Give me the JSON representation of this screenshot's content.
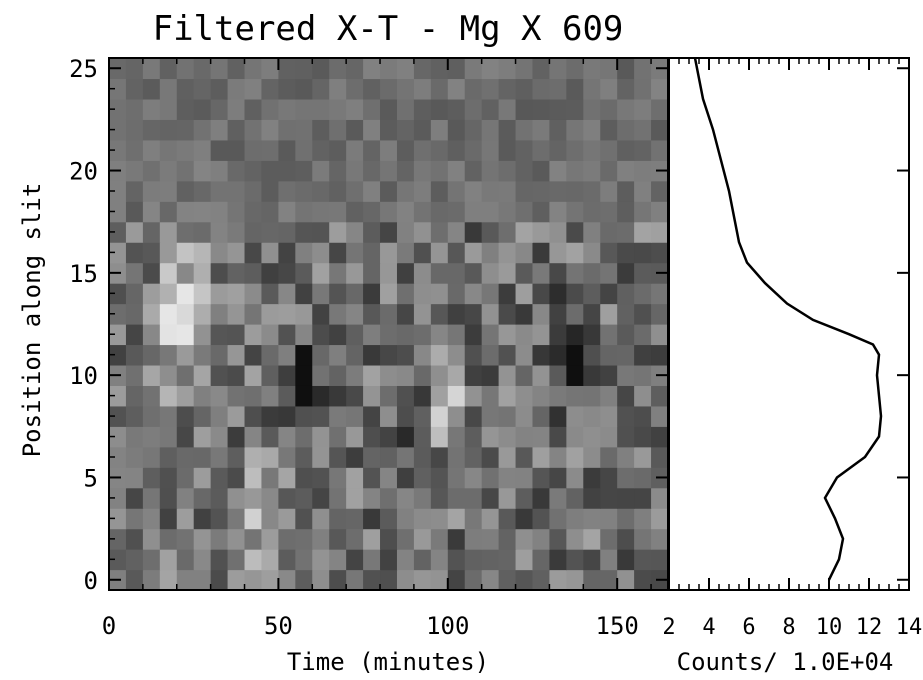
{
  "chart_data": [
    {
      "type": "heatmap",
      "title": "Filtered X-T - Mg X 609",
      "xlabel": "Time (minutes)",
      "ylabel": "Position along slit",
      "xlim": [
        0,
        165
      ],
      "ylim": [
        -0.5,
        25.5
      ],
      "xticks": [
        0,
        50,
        100,
        150
      ],
      "yticks": [
        0,
        5,
        10,
        15,
        20,
        25
      ],
      "colormap": "grayscale",
      "n_time_bins": 33,
      "n_position_bins": 26,
      "value_range": [
        -1,
        1
      ],
      "features": [
        {
          "description": "bright blob",
          "time": [
            15,
            30
          ],
          "position": [
            10,
            16
          ],
          "value": 0.9
        },
        {
          "description": "bright blob",
          "time": [
            95,
            102
          ],
          "position": [
            7,
            10
          ],
          "value": 0.9
        },
        {
          "description": "dark band",
          "time": [
            53,
            62
          ],
          "position": [
            8,
            11
          ],
          "value": -0.8
        },
        {
          "description": "dark band",
          "time": [
            88,
            95
          ],
          "position": [
            5,
            8
          ],
          "value": -0.7
        },
        {
          "description": "dark band",
          "time": [
            133,
            140
          ],
          "position": [
            9,
            13
          ],
          "value": -0.7
        },
        {
          "description": "bright streak",
          "time": [
            40,
            48
          ],
          "position": [
            1,
            5
          ],
          "value": 0.6
        }
      ]
    },
    {
      "type": "line",
      "xlabel": "Counts/ 1.0E+04",
      "xlim": [
        2,
        14
      ],
      "ylim": [
        -0.5,
        25.5
      ],
      "xticks": [
        2,
        4,
        6,
        8,
        10,
        12,
        14
      ],
      "xtick_labels": [
        "2",
        "4",
        "6",
        "8",
        "10",
        "12",
        "14"
      ],
      "line_color": "#000000",
      "points": [
        {
          "y": 0,
          "x": 10.0
        },
        {
          "y": 1,
          "x": 10.5
        },
        {
          "y": 2,
          "x": 10.7
        },
        {
          "y": 3,
          "x": 10.3
        },
        {
          "y": 4,
          "x": 9.8
        },
        {
          "y": 5,
          "x": 10.4
        },
        {
          "y": 6,
          "x": 11.8
        },
        {
          "y": 7,
          "x": 12.5
        },
        {
          "y": 8,
          "x": 12.6
        },
        {
          "y": 9,
          "x": 12.5
        },
        {
          "y": 10,
          "x": 12.4
        },
        {
          "y": 11,
          "x": 12.5
        },
        {
          "y": 11.5,
          "x": 12.2
        },
        {
          "y": 12,
          "x": 11.0
        },
        {
          "y": 12.7,
          "x": 9.2
        },
        {
          "y": 13.5,
          "x": 7.9
        },
        {
          "y": 14.5,
          "x": 6.8
        },
        {
          "y": 15.5,
          "x": 5.9
        },
        {
          "y": 16.5,
          "x": 5.5
        },
        {
          "y": 17.5,
          "x": 5.3
        },
        {
          "y": 19,
          "x": 5.0
        },
        {
          "y": 20.5,
          "x": 4.6
        },
        {
          "y": 22,
          "x": 4.2
        },
        {
          "y": 23.5,
          "x": 3.7
        },
        {
          "y": 25,
          "x": 3.4
        },
        {
          "y": 25.5,
          "x": 3.3
        }
      ]
    }
  ]
}
